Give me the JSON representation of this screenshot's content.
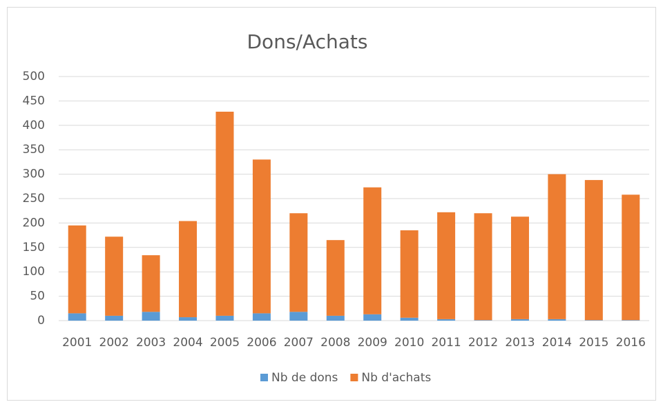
{
  "chart_data": {
    "type": "stacked_bar",
    "title": "Dons/Achats",
    "categories": [
      "2001",
      "2002",
      "2003",
      "2004",
      "2005",
      "2006",
      "2007",
      "2008",
      "2009",
      "2010",
      "2011",
      "2012",
      "2013",
      "2014",
      "2015",
      "2016"
    ],
    "series": [
      {
        "name": "Nb de dons",
        "color": "#5b9bd5",
        "values": [
          15,
          10,
          18,
          7,
          10,
          15,
          18,
          10,
          13,
          6,
          3,
          1,
          3,
          3,
          1,
          1
        ]
      },
      {
        "name": "Nb d'achats",
        "color": "#ed7d31",
        "values": [
          180,
          162,
          116,
          197,
          418,
          315,
          202,
          155,
          260,
          179,
          219,
          219,
          210,
          297,
          287,
          257
        ]
      }
    ],
    "ylim": [
      0,
      500
    ],
    "yticks": [
      0,
      50,
      100,
      150,
      200,
      250,
      300,
      350,
      400,
      450,
      500
    ],
    "grid": true,
    "legend": "bottom"
  }
}
